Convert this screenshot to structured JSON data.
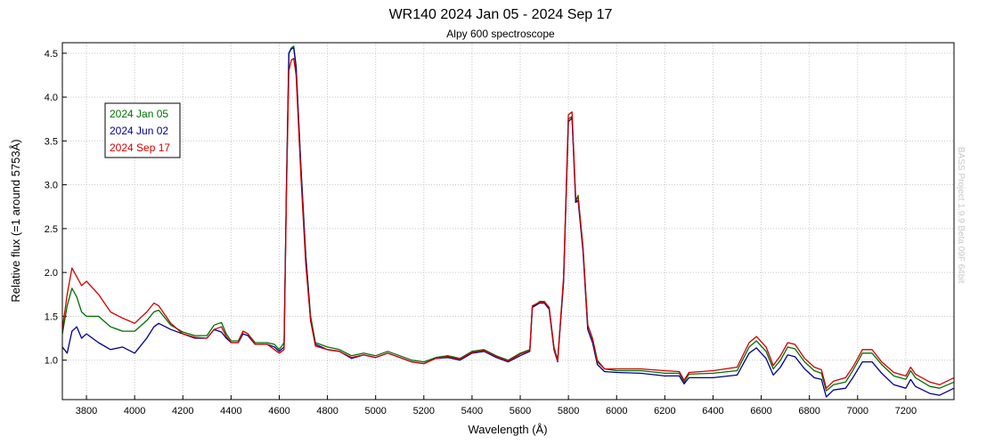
{
  "chart_data": {
    "type": "line",
    "title": "WR140 2024 Jan 05 - 2024 Sep 17",
    "subtitle": "Alpy 600 spectroscope",
    "xlabel": "Wavelength (Å)",
    "ylabel": "Relative flux (=1 around 5753Å)",
    "xlim": [
      3700,
      7400
    ],
    "ylim": [
      0.55,
      4.62
    ],
    "x_ticks": [
      3800,
      4000,
      4200,
      4400,
      4600,
      4800,
      5000,
      5200,
      5400,
      5600,
      5800,
      6000,
      6200,
      6400,
      6600,
      6800,
      7000,
      7200
    ],
    "y_ticks": [
      1.0,
      1.5,
      2.0,
      2.5,
      3.0,
      3.5,
      4.0,
      4.5
    ],
    "y_tick_labels": [
      "1.0",
      "1.5",
      "2.0",
      "2.5",
      "3.0",
      "3.5",
      "4.0",
      "4.5"
    ],
    "grid": true,
    "legend_position": "top-left",
    "watermark": "BASS Project 1.9.9 Beta 09F 64bit",
    "series": [
      {
        "name": "2024 Jan 05",
        "color": "#007000",
        "points": [
          [
            3700,
            1.3
          ],
          [
            3720,
            1.62
          ],
          [
            3740,
            1.82
          ],
          [
            3760,
            1.72
          ],
          [
            3780,
            1.55
          ],
          [
            3800,
            1.5
          ],
          [
            3850,
            1.5
          ],
          [
            3900,
            1.38
          ],
          [
            3950,
            1.33
          ],
          [
            4000,
            1.33
          ],
          [
            4050,
            1.45
          ],
          [
            4080,
            1.55
          ],
          [
            4100,
            1.57
          ],
          [
            4150,
            1.4
          ],
          [
            4200,
            1.32
          ],
          [
            4250,
            1.28
          ],
          [
            4300,
            1.28
          ],
          [
            4330,
            1.4
          ],
          [
            4360,
            1.43
          ],
          [
            4380,
            1.3
          ],
          [
            4400,
            1.22
          ],
          [
            4430,
            1.22
          ],
          [
            4450,
            1.33
          ],
          [
            4470,
            1.3
          ],
          [
            4500,
            1.2
          ],
          [
            4550,
            1.2
          ],
          [
            4580,
            1.18
          ],
          [
            4600,
            1.12
          ],
          [
            4620,
            1.2
          ],
          [
            4630,
            3.0
          ],
          [
            4640,
            4.5
          ],
          [
            4650,
            4.56
          ],
          [
            4660,
            4.58
          ],
          [
            4670,
            4.35
          ],
          [
            4690,
            3.2
          ],
          [
            4710,
            2.2
          ],
          [
            4730,
            1.5
          ],
          [
            4750,
            1.2
          ],
          [
            4800,
            1.15
          ],
          [
            4850,
            1.12
          ],
          [
            4900,
            1.05
          ],
          [
            4950,
            1.08
          ],
          [
            5000,
            1.05
          ],
          [
            5050,
            1.1
          ],
          [
            5100,
            1.05
          ],
          [
            5150,
            1.0
          ],
          [
            5200,
            0.98
          ],
          [
            5250,
            1.03
          ],
          [
            5300,
            1.05
          ],
          [
            5350,
            1.02
          ],
          [
            5400,
            1.1
          ],
          [
            5450,
            1.12
          ],
          [
            5500,
            1.05
          ],
          [
            5550,
            1.0
          ],
          [
            5600,
            1.08
          ],
          [
            5640,
            1.12
          ],
          [
            5650,
            1.6
          ],
          [
            5680,
            1.67
          ],
          [
            5700,
            1.67
          ],
          [
            5720,
            1.6
          ],
          [
            5740,
            1.15
          ],
          [
            5755,
            1.0
          ],
          [
            5780,
            1.9
          ],
          [
            5800,
            3.75
          ],
          [
            5815,
            3.78
          ],
          [
            5830,
            2.8
          ],
          [
            5840,
            2.88
          ],
          [
            5860,
            2.3
          ],
          [
            5880,
            1.4
          ],
          [
            5900,
            1.25
          ],
          [
            5920,
            1.0
          ],
          [
            5950,
            0.9
          ],
          [
            6000,
            0.88
          ],
          [
            6100,
            0.88
          ],
          [
            6200,
            0.85
          ],
          [
            6260,
            0.85
          ],
          [
            6280,
            0.75
          ],
          [
            6300,
            0.84
          ],
          [
            6400,
            0.85
          ],
          [
            6500,
            0.88
          ],
          [
            6550,
            1.15
          ],
          [
            6580,
            1.22
          ],
          [
            6620,
            1.1
          ],
          [
            6650,
            0.9
          ],
          [
            6680,
            1.0
          ],
          [
            6710,
            1.15
          ],
          [
            6740,
            1.13
          ],
          [
            6780,
            0.98
          ],
          [
            6820,
            0.88
          ],
          [
            6850,
            0.85
          ],
          [
            6870,
            0.65
          ],
          [
            6900,
            0.72
          ],
          [
            6950,
            0.75
          ],
          [
            6980,
            0.88
          ],
          [
            7020,
            1.08
          ],
          [
            7060,
            1.08
          ],
          [
            7100,
            0.95
          ],
          [
            7150,
            0.82
          ],
          [
            7200,
            0.78
          ],
          [
            7220,
            0.88
          ],
          [
            7240,
            0.8
          ],
          [
            7300,
            0.7
          ],
          [
            7340,
            0.68
          ],
          [
            7400,
            0.75
          ]
        ]
      },
      {
        "name": "2024 Jun 02",
        "color": "#000090",
        "points": [
          [
            3700,
            1.15
          ],
          [
            3720,
            1.08
          ],
          [
            3740,
            1.33
          ],
          [
            3760,
            1.38
          ],
          [
            3780,
            1.25
          ],
          [
            3800,
            1.3
          ],
          [
            3850,
            1.2
          ],
          [
            3900,
            1.12
          ],
          [
            3950,
            1.15
          ],
          [
            4000,
            1.08
          ],
          [
            4050,
            1.25
          ],
          [
            4080,
            1.38
          ],
          [
            4100,
            1.42
          ],
          [
            4150,
            1.35
          ],
          [
            4200,
            1.3
          ],
          [
            4250,
            1.25
          ],
          [
            4300,
            1.25
          ],
          [
            4330,
            1.35
          ],
          [
            4360,
            1.32
          ],
          [
            4380,
            1.25
          ],
          [
            4400,
            1.2
          ],
          [
            4430,
            1.2
          ],
          [
            4450,
            1.3
          ],
          [
            4470,
            1.28
          ],
          [
            4500,
            1.18
          ],
          [
            4550,
            1.18
          ],
          [
            4580,
            1.15
          ],
          [
            4600,
            1.1
          ],
          [
            4620,
            1.15
          ],
          [
            4630,
            3.0
          ],
          [
            4640,
            4.5
          ],
          [
            4650,
            4.55
          ],
          [
            4660,
            4.56
          ],
          [
            4670,
            4.35
          ],
          [
            4690,
            3.2
          ],
          [
            4710,
            2.2
          ],
          [
            4730,
            1.45
          ],
          [
            4750,
            1.18
          ],
          [
            4800,
            1.12
          ],
          [
            4850,
            1.1
          ],
          [
            4900,
            1.02
          ],
          [
            4950,
            1.06
          ],
          [
            5000,
            1.03
          ],
          [
            5050,
            1.08
          ],
          [
            5100,
            1.03
          ],
          [
            5150,
            0.98
          ],
          [
            5200,
            0.96
          ],
          [
            5250,
            1.02
          ],
          [
            5300,
            1.03
          ],
          [
            5350,
            1.0
          ],
          [
            5400,
            1.08
          ],
          [
            5450,
            1.1
          ],
          [
            5500,
            1.03
          ],
          [
            5550,
            0.98
          ],
          [
            5600,
            1.05
          ],
          [
            5640,
            1.1
          ],
          [
            5650,
            1.6
          ],
          [
            5680,
            1.65
          ],
          [
            5700,
            1.65
          ],
          [
            5720,
            1.58
          ],
          [
            5740,
            1.12
          ],
          [
            5755,
            0.98
          ],
          [
            5780,
            1.9
          ],
          [
            5800,
            3.72
          ],
          [
            5815,
            3.76
          ],
          [
            5830,
            2.8
          ],
          [
            5840,
            2.82
          ],
          [
            5860,
            2.25
          ],
          [
            5880,
            1.35
          ],
          [
            5900,
            1.2
          ],
          [
            5920,
            0.95
          ],
          [
            5950,
            0.87
          ],
          [
            6000,
            0.86
          ],
          [
            6100,
            0.85
          ],
          [
            6200,
            0.82
          ],
          [
            6260,
            0.82
          ],
          [
            6280,
            0.73
          ],
          [
            6300,
            0.8
          ],
          [
            6400,
            0.8
          ],
          [
            6500,
            0.83
          ],
          [
            6550,
            1.08
          ],
          [
            6580,
            1.14
          ],
          [
            6620,
            1.02
          ],
          [
            6650,
            0.83
          ],
          [
            6680,
            0.92
          ],
          [
            6710,
            1.06
          ],
          [
            6740,
            1.04
          ],
          [
            6780,
            0.9
          ],
          [
            6820,
            0.8
          ],
          [
            6850,
            0.78
          ],
          [
            6870,
            0.58
          ],
          [
            6900,
            0.66
          ],
          [
            6950,
            0.68
          ],
          [
            6980,
            0.8
          ],
          [
            7020,
            0.98
          ],
          [
            7060,
            0.98
          ],
          [
            7100,
            0.85
          ],
          [
            7150,
            0.72
          ],
          [
            7200,
            0.68
          ],
          [
            7220,
            0.78
          ],
          [
            7240,
            0.7
          ],
          [
            7300,
            0.62
          ],
          [
            7340,
            0.6
          ],
          [
            7400,
            0.68
          ]
        ]
      },
      {
        "name": "2024 Sep 17",
        "color": "#d00000",
        "points": [
          [
            3700,
            1.35
          ],
          [
            3720,
            1.75
          ],
          [
            3740,
            2.05
          ],
          [
            3760,
            1.95
          ],
          [
            3780,
            1.85
          ],
          [
            3800,
            1.9
          ],
          [
            3850,
            1.75
          ],
          [
            3900,
            1.55
          ],
          [
            3950,
            1.48
          ],
          [
            4000,
            1.42
          ],
          [
            4050,
            1.55
          ],
          [
            4080,
            1.65
          ],
          [
            4100,
            1.62
          ],
          [
            4150,
            1.42
          ],
          [
            4200,
            1.3
          ],
          [
            4250,
            1.26
          ],
          [
            4300,
            1.25
          ],
          [
            4330,
            1.35
          ],
          [
            4360,
            1.38
          ],
          [
            4380,
            1.27
          ],
          [
            4400,
            1.2
          ],
          [
            4430,
            1.2
          ],
          [
            4450,
            1.33
          ],
          [
            4470,
            1.3
          ],
          [
            4500,
            1.18
          ],
          [
            4550,
            1.18
          ],
          [
            4580,
            1.12
          ],
          [
            4600,
            1.08
          ],
          [
            4620,
            1.12
          ],
          [
            4630,
            2.9
          ],
          [
            4640,
            4.3
          ],
          [
            4650,
            4.42
          ],
          [
            4660,
            4.44
          ],
          [
            4670,
            4.25
          ],
          [
            4690,
            3.1
          ],
          [
            4710,
            2.1
          ],
          [
            4730,
            1.45
          ],
          [
            4750,
            1.16
          ],
          [
            4800,
            1.12
          ],
          [
            4850,
            1.1
          ],
          [
            4900,
            1.03
          ],
          [
            4950,
            1.06
          ],
          [
            5000,
            1.03
          ],
          [
            5050,
            1.08
          ],
          [
            5100,
            1.03
          ],
          [
            5150,
            0.98
          ],
          [
            5200,
            0.96
          ],
          [
            5250,
            1.02
          ],
          [
            5300,
            1.04
          ],
          [
            5350,
            1.01
          ],
          [
            5400,
            1.09
          ],
          [
            5450,
            1.11
          ],
          [
            5500,
            1.04
          ],
          [
            5550,
            0.99
          ],
          [
            5600,
            1.07
          ],
          [
            5640,
            1.11
          ],
          [
            5650,
            1.62
          ],
          [
            5680,
            1.66
          ],
          [
            5700,
            1.66
          ],
          [
            5720,
            1.6
          ],
          [
            5740,
            1.14
          ],
          [
            5755,
            0.99
          ],
          [
            5780,
            1.95
          ],
          [
            5800,
            3.8
          ],
          [
            5815,
            3.83
          ],
          [
            5830,
            2.85
          ],
          [
            5840,
            2.85
          ],
          [
            5860,
            2.3
          ],
          [
            5880,
            1.4
          ],
          [
            5900,
            1.24
          ],
          [
            5920,
            0.98
          ],
          [
            5950,
            0.9
          ],
          [
            6000,
            0.9
          ],
          [
            6100,
            0.9
          ],
          [
            6200,
            0.88
          ],
          [
            6260,
            0.87
          ],
          [
            6280,
            0.77
          ],
          [
            6300,
            0.86
          ],
          [
            6400,
            0.88
          ],
          [
            6500,
            0.92
          ],
          [
            6550,
            1.2
          ],
          [
            6580,
            1.27
          ],
          [
            6620,
            1.15
          ],
          [
            6650,
            0.94
          ],
          [
            6680,
            1.05
          ],
          [
            6710,
            1.2
          ],
          [
            6740,
            1.18
          ],
          [
            6780,
            1.02
          ],
          [
            6820,
            0.92
          ],
          [
            6850,
            0.89
          ],
          [
            6870,
            0.68
          ],
          [
            6900,
            0.76
          ],
          [
            6950,
            0.8
          ],
          [
            6980,
            0.92
          ],
          [
            7020,
            1.12
          ],
          [
            7060,
            1.12
          ],
          [
            7100,
            0.98
          ],
          [
            7150,
            0.86
          ],
          [
            7200,
            0.82
          ],
          [
            7220,
            0.92
          ],
          [
            7240,
            0.84
          ],
          [
            7300,
            0.75
          ],
          [
            7340,
            0.72
          ],
          [
            7400,
            0.8
          ]
        ]
      }
    ]
  }
}
